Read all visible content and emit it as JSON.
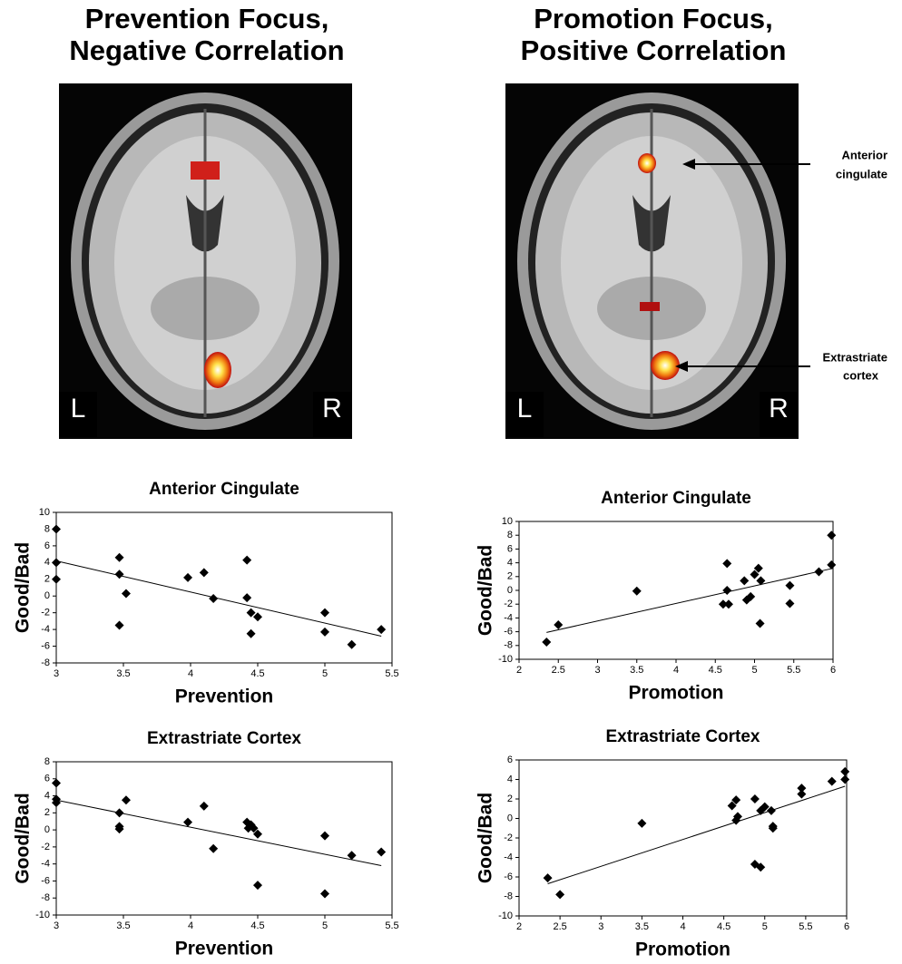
{
  "panels": [
    {
      "title": [
        "Prevention Focus,",
        "Negative Correlation"
      ],
      "left_label": "L",
      "right_label": "R"
    },
    {
      "title": [
        "Promotion Focus,",
        "Positive Correlation"
      ],
      "left_label": "L",
      "right_label": "R",
      "annotations": [
        {
          "lines": [
            "Anterior",
            "cingulate"
          ]
        },
        {
          "lines": [
            "Extrastriate",
            "cortex"
          ]
        }
      ]
    }
  ],
  "chart_data": [
    {
      "type": "scatter",
      "title": "Anterior Cingulate",
      "x_label": "Prevention",
      "y_label": "Good/Bad",
      "xlim": [
        3,
        5.5
      ],
      "xticks": [
        3,
        3.5,
        4,
        4.5,
        5,
        5.5
      ],
      "ylim": [
        -8,
        10
      ],
      "yticks": [
        -8,
        -6,
        -4,
        -2,
        0,
        2,
        4,
        6,
        8,
        10
      ],
      "color": "#000000",
      "grid": false,
      "x": [
        3,
        3,
        3,
        3.47,
        3.47,
        3.47,
        3.52,
        3.98,
        4.1,
        4.17,
        4.42,
        4.42,
        4.45,
        4.45,
        4.5,
        5.0,
        5.0,
        5.2,
        5.42
      ],
      "values": [
        8,
        4,
        2,
        4.6,
        2.6,
        -3.5,
        0.3,
        2.2,
        2.8,
        -0.3,
        4.3,
        -0.2,
        -2.0,
        -4.5,
        -2.5,
        -2.0,
        -4.3,
        -5.8,
        -4.0
      ],
      "trendline": {
        "x": [
          3,
          5.42
        ],
        "values": [
          4.2,
          -4.8
        ]
      }
    },
    {
      "type": "scatter",
      "title": "Anterior Cingulate",
      "x_label": "Promotion",
      "y_label": "Good/Bad",
      "xlim": [
        2,
        6
      ],
      "xticks": [
        2,
        2.5,
        3,
        3.5,
        4,
        4.5,
        5,
        5.5,
        6
      ],
      "ylim": [
        -10,
        10
      ],
      "yticks": [
        -10,
        -8,
        -6,
        -4,
        -2,
        0,
        2,
        4,
        6,
        8,
        10
      ],
      "color": "#000000",
      "grid": false,
      "x": [
        2.35,
        2.5,
        3.5,
        4.6,
        4.65,
        4.65,
        4.67,
        4.87,
        4.9,
        4.95,
        5.0,
        5.05,
        5.07,
        5.08,
        5.45,
        5.45,
        5.82,
        5.98,
        5.98
      ],
      "values": [
        -7.5,
        -5,
        -0.1,
        -2,
        3.9,
        0,
        -2,
        1.4,
        -1.4,
        -0.9,
        2.3,
        3.2,
        -4.8,
        1.4,
        -1.9,
        0.7,
        2.7,
        3.7,
        8
      ],
      "trendline": {
        "x": [
          2.35,
          6
        ],
        "values": [
          -6.1,
          3.2
        ]
      }
    },
    {
      "type": "scatter",
      "title": "Extrastriate Cortex",
      "x_label": "Prevention",
      "y_label": "Good/Bad",
      "xlim": [
        3,
        5.5
      ],
      "xticks": [
        3,
        3.5,
        4,
        4.5,
        5,
        5.5
      ],
      "ylim": [
        -10,
        8
      ],
      "yticks": [
        -10,
        -8,
        -6,
        -4,
        -2,
        0,
        2,
        4,
        6,
        8
      ],
      "color": "#000000",
      "grid": false,
      "x": [
        3,
        3,
        3,
        3.47,
        3.47,
        3.47,
        3.52,
        3.98,
        4.1,
        4.17,
        4.42,
        4.45,
        4.43,
        4.47,
        4.5,
        4.5,
        5.0,
        5.0,
        5.2,
        5.42
      ],
      "values": [
        5.5,
        3.6,
        3.2,
        2.0,
        0.4,
        0.1,
        3.5,
        0.9,
        2.8,
        -2.2,
        0.9,
        0.6,
        0.2,
        0.2,
        -0.5,
        -6.5,
        -0.7,
        -7.5,
        -3.0,
        -2.6
      ],
      "trendline": {
        "x": [
          3,
          5.42
        ],
        "values": [
          3.5,
          -4.2
        ]
      }
    },
    {
      "type": "scatter",
      "title": "Extrastriate Cortex",
      "x_label": "Promotion",
      "y_label": "Good/Bad",
      "xlim": [
        2,
        6
      ],
      "xticks": [
        2,
        2.5,
        3,
        3.5,
        4,
        4.5,
        5,
        5.5,
        6
      ],
      "ylim": [
        -10,
        6
      ],
      "yticks": [
        -10,
        -8,
        -6,
        -4,
        -2,
        0,
        2,
        4,
        6
      ],
      "color": "#000000",
      "grid": false,
      "x": [
        2.35,
        2.5,
        3.5,
        4.6,
        4.65,
        4.65,
        4.67,
        4.88,
        4.88,
        4.95,
        4.95,
        5.0,
        5.08,
        5.1,
        5.1,
        5.45,
        5.45,
        5.82,
        5.98,
        5.98
      ],
      "values": [
        -6.1,
        -7.8,
        -0.5,
        1.3,
        1.9,
        -0.2,
        0.2,
        2.0,
        -4.7,
        -5.0,
        0.8,
        1.2,
        0.8,
        -0.8,
        -1.0,
        2.5,
        3.1,
        3.8,
        4.8,
        4.0
      ],
      "trendline": {
        "x": [
          2.35,
          5.98
        ],
        "values": [
          -6.7,
          3.3
        ]
      }
    }
  ]
}
